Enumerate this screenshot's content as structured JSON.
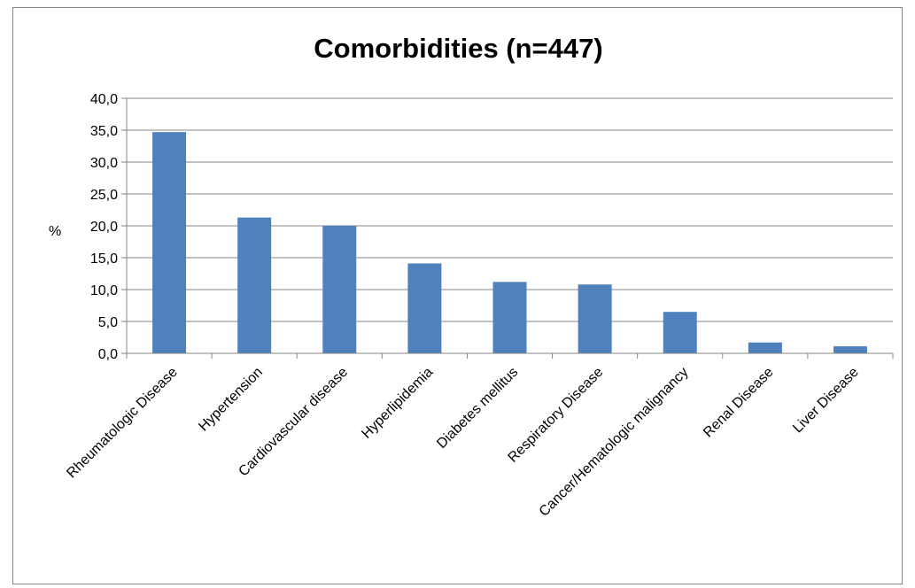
{
  "chart_data": {
    "type": "bar",
    "title": "Comorbidities (n=447)",
    "xlabel": "",
    "ylabel": "%",
    "ylim": [
      0,
      40
    ],
    "yticks": [
      "0,0",
      "5,0",
      "10,0",
      "15,0",
      "20,0",
      "25,0",
      "30,0",
      "35,0",
      "40,0"
    ],
    "categories": [
      "Rheumatologic Disease",
      "Hypertension",
      "Cardiovascular disease",
      "Hyperlipidemia",
      "Diabetes mellitus",
      "Respiratory Disease",
      "Cancer/Hematologic malignancy",
      "Renal Disease",
      "Liver Disease"
    ],
    "values": [
      34.7,
      21.3,
      20.0,
      14.1,
      11.2,
      10.8,
      6.5,
      1.7,
      1.1
    ],
    "grid": true,
    "legend": "none",
    "bar_color": "#4F81BD",
    "grid_color": "#868686"
  }
}
